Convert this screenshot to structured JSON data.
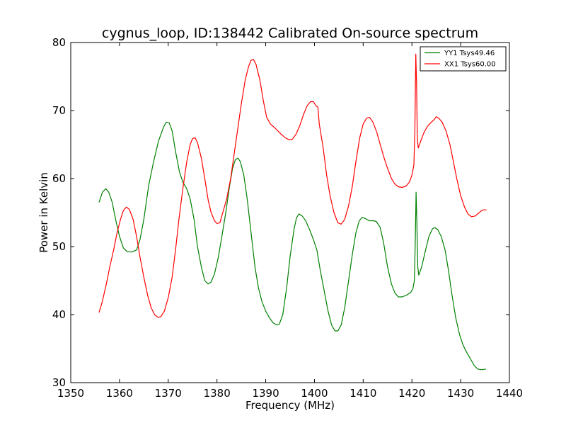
{
  "chart_data": {
    "type": "line",
    "title": "cygnus_loop, ID:138442 Calibrated On-source spectrum",
    "xlabel": "Frequency (MHz)",
    "ylabel": "Power in Kelvin",
    "xlim": [
      1350,
      1440
    ],
    "ylim": [
      30,
      80
    ],
    "x_ticks": [
      "1350",
      "1360",
      "1370",
      "1380",
      "1390",
      "1400",
      "1410",
      "1420",
      "1430",
      "1440"
    ],
    "y_ticks": [
      "30",
      "40",
      "50",
      "60",
      "70",
      "80"
    ],
    "grid": false,
    "legend_position": "top-right",
    "series": [
      {
        "name": "YY1 Tsys49.46",
        "color": "#008000",
        "points": [
          [
            1355.8,
            56.5
          ],
          [
            1356.5,
            58.0
          ],
          [
            1357.2,
            58.5
          ],
          [
            1357.8,
            58.0
          ],
          [
            1358.5,
            56.5
          ],
          [
            1359.2,
            54.0
          ],
          [
            1360.0,
            51.5
          ],
          [
            1360.8,
            49.8
          ],
          [
            1361.5,
            49.3
          ],
          [
            1362.5,
            49.2
          ],
          [
            1363.5,
            49.5
          ],
          [
            1364.2,
            51.0
          ],
          [
            1365.0,
            54.0
          ],
          [
            1366.0,
            59.0
          ],
          [
            1367.0,
            62.5
          ],
          [
            1368.0,
            65.5
          ],
          [
            1369.0,
            67.5
          ],
          [
            1369.6,
            68.3
          ],
          [
            1370.2,
            68.2
          ],
          [
            1370.8,
            67.0
          ],
          [
            1371.5,
            64.0
          ],
          [
            1372.3,
            61.0
          ],
          [
            1373.0,
            59.5
          ],
          [
            1373.8,
            58.5
          ],
          [
            1374.5,
            57.0
          ],
          [
            1375.3,
            54.0
          ],
          [
            1376.0,
            50.0
          ],
          [
            1376.8,
            47.0
          ],
          [
            1377.5,
            45.0
          ],
          [
            1378.2,
            44.5
          ],
          [
            1378.8,
            44.8
          ],
          [
            1379.5,
            46.0
          ],
          [
            1380.3,
            48.5
          ],
          [
            1381.0,
            51.5
          ],
          [
            1381.8,
            55.0
          ],
          [
            1382.5,
            58.5
          ],
          [
            1383.2,
            61.5
          ],
          [
            1383.8,
            62.8
          ],
          [
            1384.3,
            63.0
          ],
          [
            1384.8,
            62.5
          ],
          [
            1385.5,
            60.5
          ],
          [
            1386.2,
            57.0
          ],
          [
            1387.0,
            52.0
          ],
          [
            1387.8,
            47.0
          ],
          [
            1388.5,
            44.0
          ],
          [
            1389.2,
            42.0
          ],
          [
            1390.0,
            40.5
          ],
          [
            1390.8,
            39.5
          ],
          [
            1391.5,
            38.8
          ],
          [
            1392.2,
            38.5
          ],
          [
            1392.8,
            38.6
          ],
          [
            1393.5,
            40.0
          ],
          [
            1394.3,
            44.0
          ],
          [
            1395.0,
            48.5
          ],
          [
            1395.8,
            52.5
          ],
          [
            1396.3,
            54.2
          ],
          [
            1396.8,
            54.8
          ],
          [
            1397.5,
            54.5
          ],
          [
            1398.2,
            53.8
          ],
          [
            1399.0,
            52.5
          ],
          [
            1399.8,
            51.0
          ],
          [
            1400.5,
            49.5
          ],
          [
            1401.2,
            46.5
          ],
          [
            1402.0,
            43.5
          ],
          [
            1402.8,
            40.5
          ],
          [
            1403.5,
            38.5
          ],
          [
            1404.2,
            37.6
          ],
          [
            1404.8,
            37.6
          ],
          [
            1405.5,
            38.5
          ],
          [
            1406.2,
            41.0
          ],
          [
            1407.0,
            45.0
          ],
          [
            1407.8,
            49.0
          ],
          [
            1408.5,
            52.0
          ],
          [
            1409.2,
            53.8
          ],
          [
            1409.8,
            54.3
          ],
          [
            1410.5,
            54.1
          ],
          [
            1411.2,
            53.8
          ],
          [
            1412.0,
            53.8
          ],
          [
            1412.7,
            53.7
          ],
          [
            1413.5,
            52.8
          ],
          [
            1414.2,
            50.5
          ],
          [
            1415.0,
            47.0
          ],
          [
            1415.8,
            44.5
          ],
          [
            1416.5,
            43.2
          ],
          [
            1417.2,
            42.6
          ],
          [
            1418.0,
            42.6
          ],
          [
            1419.0,
            42.9
          ],
          [
            1419.8,
            43.3
          ],
          [
            1420.2,
            43.8
          ],
          [
            1420.5,
            45.0
          ],
          [
            1420.7,
            51.0
          ],
          [
            1420.85,
            58.0
          ],
          [
            1421.0,
            54.0
          ],
          [
            1421.2,
            47.0
          ],
          [
            1421.4,
            45.8
          ],
          [
            1422.0,
            47.0
          ],
          [
            1422.8,
            49.5
          ],
          [
            1423.5,
            51.5
          ],
          [
            1424.2,
            52.6
          ],
          [
            1424.7,
            52.8
          ],
          [
            1425.3,
            52.5
          ],
          [
            1426.0,
            51.5
          ],
          [
            1426.8,
            49.5
          ],
          [
            1427.5,
            46.5
          ],
          [
            1428.2,
            43.0
          ],
          [
            1429.0,
            39.5
          ],
          [
            1429.8,
            37.0
          ],
          [
            1430.5,
            35.5
          ],
          [
            1431.2,
            34.5
          ],
          [
            1432.0,
            33.5
          ],
          [
            1432.8,
            32.5
          ],
          [
            1433.5,
            32.0
          ],
          [
            1434.3,
            31.9
          ],
          [
            1435.2,
            32.0
          ]
        ]
      },
      {
        "name": "XX1 Tsys60.00",
        "color": "#ff0000",
        "points": [
          [
            1355.8,
            40.3
          ],
          [
            1356.5,
            42.0
          ],
          [
            1357.3,
            44.5
          ],
          [
            1358.0,
            47.0
          ],
          [
            1358.8,
            49.5
          ],
          [
            1359.5,
            52.0
          ],
          [
            1360.2,
            54.0
          ],
          [
            1360.8,
            55.3
          ],
          [
            1361.4,
            55.8
          ],
          [
            1362.0,
            55.5
          ],
          [
            1362.8,
            54.0
          ],
          [
            1363.5,
            51.5
          ],
          [
            1364.2,
            48.5
          ],
          [
            1365.0,
            45.5
          ],
          [
            1365.8,
            42.8
          ],
          [
            1366.5,
            41.0
          ],
          [
            1367.2,
            40.0
          ],
          [
            1367.9,
            39.6
          ],
          [
            1368.5,
            39.7
          ],
          [
            1369.2,
            40.5
          ],
          [
            1370.0,
            42.5
          ],
          [
            1370.8,
            45.5
          ],
          [
            1371.5,
            49.5
          ],
          [
            1372.2,
            54.0
          ],
          [
            1373.0,
            58.5
          ],
          [
            1373.8,
            62.5
          ],
          [
            1374.5,
            65.0
          ],
          [
            1375.0,
            65.9
          ],
          [
            1375.5,
            66.0
          ],
          [
            1376.0,
            65.3
          ],
          [
            1376.8,
            63.0
          ],
          [
            1377.5,
            60.0
          ],
          [
            1378.2,
            56.8
          ],
          [
            1378.8,
            55.0
          ],
          [
            1379.5,
            53.8
          ],
          [
            1380.0,
            53.4
          ],
          [
            1380.6,
            53.5
          ],
          [
            1381.2,
            55.0
          ],
          [
            1382.0,
            57.0
          ],
          [
            1382.8,
            60.0
          ],
          [
            1383.5,
            63.5
          ],
          [
            1384.2,
            67.0
          ],
          [
            1385.0,
            71.0
          ],
          [
            1385.8,
            74.5
          ],
          [
            1386.5,
            76.5
          ],
          [
            1387.0,
            77.4
          ],
          [
            1387.5,
            77.5
          ],
          [
            1388.0,
            76.8
          ],
          [
            1388.8,
            74.5
          ],
          [
            1389.5,
            71.5
          ],
          [
            1390.2,
            69.0
          ],
          [
            1391.0,
            68.0
          ],
          [
            1391.8,
            67.5
          ],
          [
            1392.5,
            67.0
          ],
          [
            1393.2,
            66.5
          ],
          [
            1394.0,
            66.0
          ],
          [
            1394.8,
            65.7
          ],
          [
            1395.5,
            65.8
          ],
          [
            1396.2,
            66.5
          ],
          [
            1397.0,
            67.8
          ],
          [
            1397.8,
            69.5
          ],
          [
            1398.5,
            70.7
          ],
          [
            1399.2,
            71.3
          ],
          [
            1399.8,
            71.3
          ],
          [
            1400.3,
            70.7
          ],
          [
            1400.7,
            70.5
          ],
          [
            1401.0,
            68.0
          ],
          [
            1401.8,
            64.5
          ],
          [
            1402.5,
            60.5
          ],
          [
            1403.2,
            57.5
          ],
          [
            1404.0,
            55.0
          ],
          [
            1404.8,
            53.5
          ],
          [
            1405.5,
            53.3
          ],
          [
            1406.2,
            54.0
          ],
          [
            1407.0,
            56.0
          ],
          [
            1407.8,
            59.0
          ],
          [
            1408.5,
            62.5
          ],
          [
            1409.3,
            66.0
          ],
          [
            1410.0,
            68.0
          ],
          [
            1410.7,
            68.9
          ],
          [
            1411.3,
            69.0
          ],
          [
            1412.0,
            68.3
          ],
          [
            1412.8,
            66.8
          ],
          [
            1413.5,
            65.0
          ],
          [
            1414.3,
            63.0
          ],
          [
            1415.0,
            61.5
          ],
          [
            1415.8,
            60.0
          ],
          [
            1416.5,
            59.2
          ],
          [
            1417.2,
            58.8
          ],
          [
            1418.0,
            58.7
          ],
          [
            1418.8,
            58.9
          ],
          [
            1419.5,
            59.5
          ],
          [
            1420.0,
            60.5
          ],
          [
            1420.4,
            62.0
          ],
          [
            1420.6,
            67.0
          ],
          [
            1420.8,
            78.3
          ],
          [
            1420.95,
            74.0
          ],
          [
            1421.1,
            66.0
          ],
          [
            1421.3,
            64.5
          ],
          [
            1421.8,
            65.5
          ],
          [
            1422.5,
            66.8
          ],
          [
            1423.2,
            67.7
          ],
          [
            1424.0,
            68.3
          ],
          [
            1424.6,
            68.7
          ],
          [
            1425.0,
            69.1
          ],
          [
            1425.6,
            68.8
          ],
          [
            1426.2,
            68.3
          ],
          [
            1427.0,
            67.0
          ],
          [
            1427.8,
            65.0
          ],
          [
            1428.5,
            62.5
          ],
          [
            1429.2,
            60.0
          ],
          [
            1430.0,
            57.5
          ],
          [
            1430.8,
            55.8
          ],
          [
            1431.5,
            54.8
          ],
          [
            1432.2,
            54.4
          ],
          [
            1433.0,
            54.5
          ],
          [
            1433.8,
            55.0
          ],
          [
            1434.5,
            55.4
          ],
          [
            1435.3,
            55.4
          ]
        ]
      }
    ]
  }
}
